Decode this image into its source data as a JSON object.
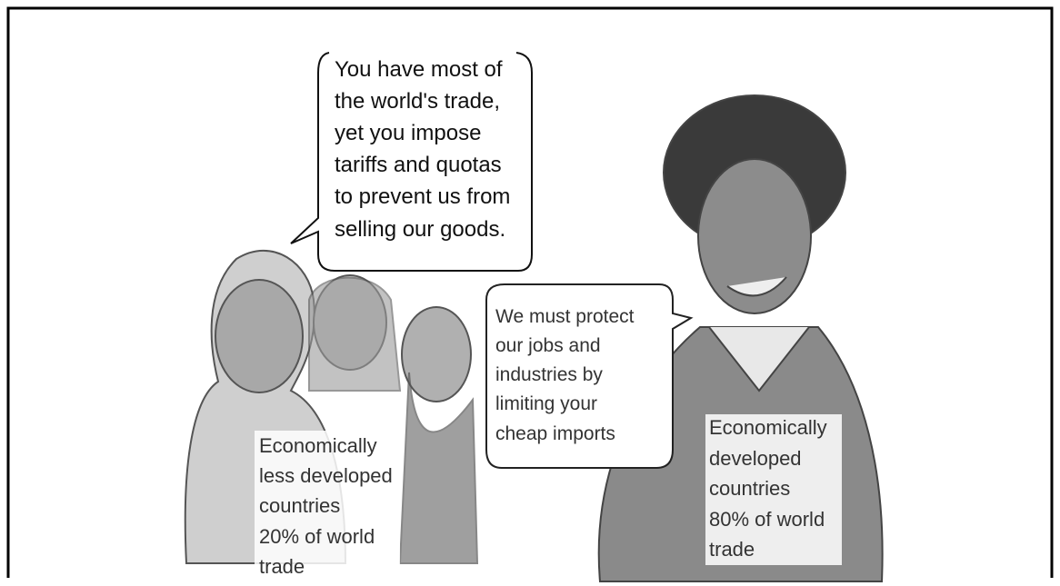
{
  "bubbles": [
    {
      "lines": [
        "You have most of",
        "the world's trade,",
        "yet you impose",
        "tariffs and quotas",
        "to prevent us from",
        "selling our goods."
      ]
    },
    {
      "lines": [
        "We must protect",
        "our jobs and",
        "industries by",
        "limiting your",
        "cheap imports"
      ]
    }
  ],
  "captions": [
    {
      "lines": [
        "Economically",
        "less developed",
        "countries",
        "20% of world",
        "trade"
      ]
    },
    {
      "lines": [
        "Economically",
        "developed",
        "countries",
        "80% of world",
        "trade"
      ]
    }
  ]
}
